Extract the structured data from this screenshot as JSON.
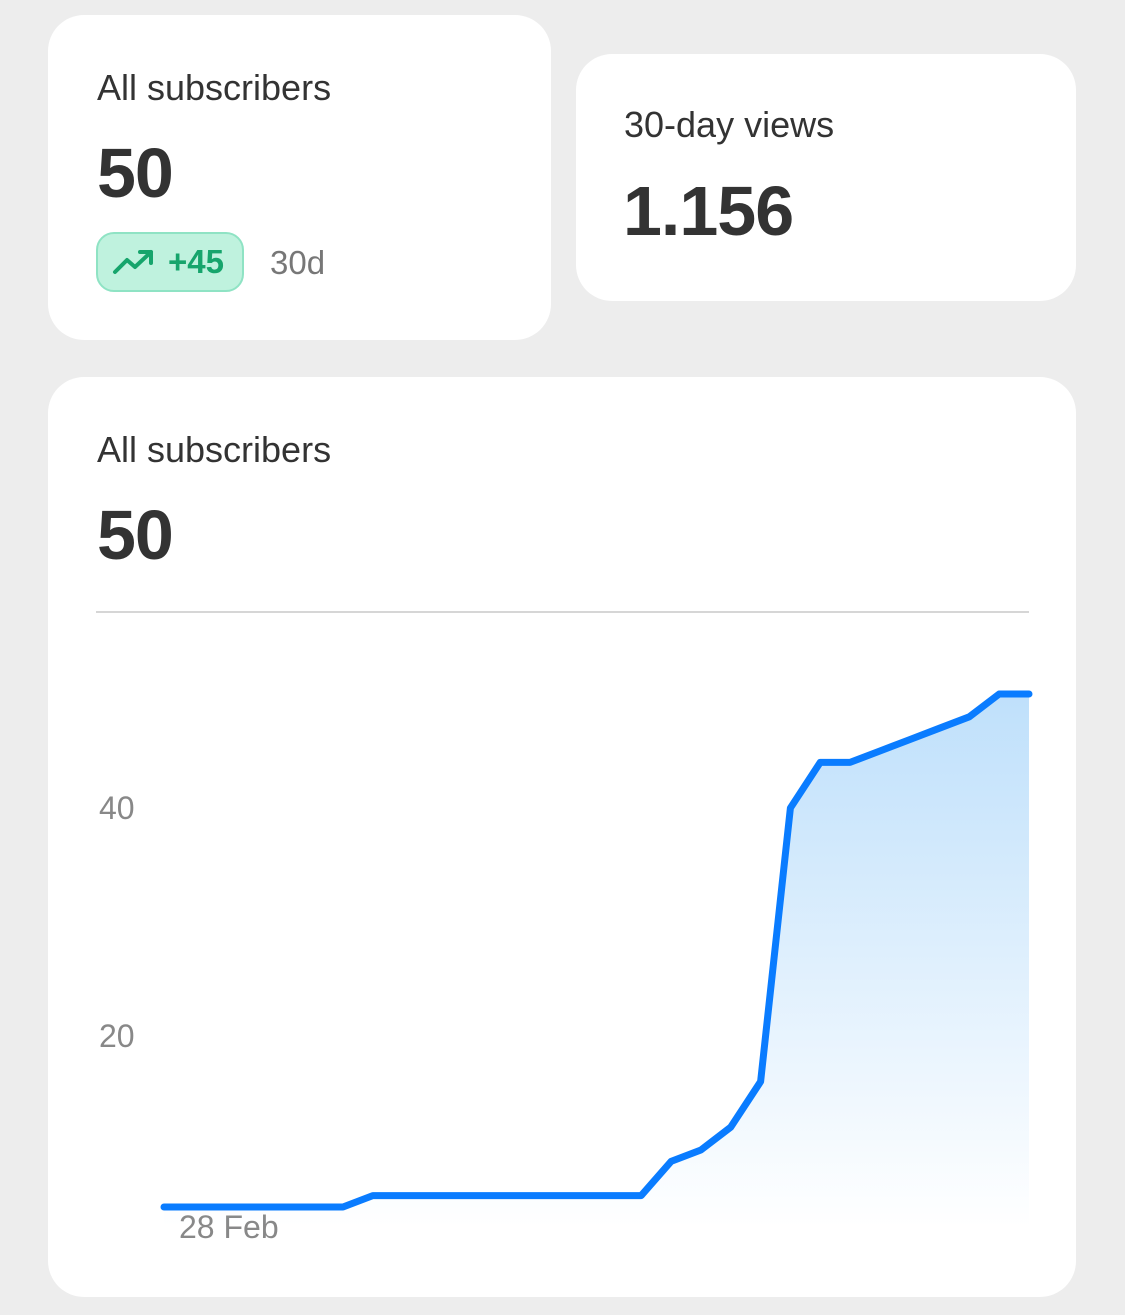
{
  "cards": {
    "subscribers": {
      "label": "All subscribers",
      "value": "50",
      "change": "+45",
      "period": "30d",
      "change_color": "#16a56c"
    },
    "views": {
      "label": "30-day views",
      "value": "1.156"
    }
  },
  "chart_card": {
    "label": "All subscribers",
    "value": "50"
  },
  "chart_data": {
    "type": "area",
    "title": "",
    "xlabel": "",
    "ylabel": "",
    "x_tick_labels": [
      "28 Feb"
    ],
    "y_ticks": [
      20,
      40
    ],
    "ylim": [
      0,
      55
    ],
    "grid": false,
    "line_color": "#0a7cff",
    "fill_color": "#bfe0fb",
    "series": [
      {
        "values": [
          5,
          5,
          5,
          5,
          5,
          5,
          5,
          6,
          6,
          6,
          6,
          6,
          6,
          6,
          6,
          6,
          6,
          9,
          10,
          12,
          16,
          40,
          44,
          44,
          45,
          46,
          47,
          48,
          50,
          50
        ]
      }
    ]
  }
}
